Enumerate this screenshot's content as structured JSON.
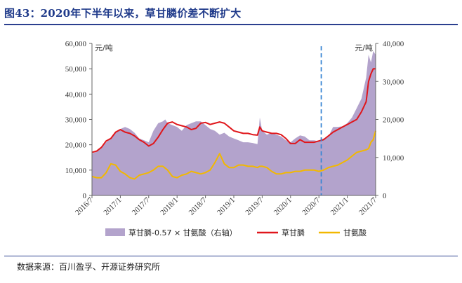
{
  "title": "图43：2020年下半年以来，草甘膦价差不断扩大",
  "source": "数据来源：百川盈孚、开源证券研究所",
  "chart_data": {
    "type": "line",
    "title": "图43：2020年下半年以来，草甘膦价差不断扩大",
    "left_unit": "元/吨",
    "right_unit": "元/吨",
    "ylim_left": [
      0,
      60000
    ],
    "ylim_right": [
      0,
      40000
    ],
    "yticks_left": [
      "0",
      "10,000",
      "20,000",
      "30,000",
      "40,000",
      "50,000",
      "60,000"
    ],
    "yticks_right": [
      "0",
      "10,000",
      "20,000",
      "30,000",
      "40,000"
    ],
    "xlim": [
      0,
      60
    ],
    "x_ticks": [
      "2016/7",
      "2017/1",
      "2017/7",
      "2018/1",
      "2018/7",
      "2019/1",
      "2019/7",
      "2020/1",
      "2020/7",
      "2021/1",
      "2021/7"
    ],
    "vline_x": 48.5,
    "series": [
      {
        "name": "草甘膦-0.57 × 甘氨酸（右轴）",
        "type": "area",
        "axis": "right",
        "color": "#b3a3cc",
        "x": [
          0,
          1,
          2,
          3,
          4,
          5,
          6,
          7,
          8,
          9,
          10,
          11,
          12,
          13,
          14,
          15,
          15.5,
          16,
          17,
          18,
          19,
          20,
          21,
          22,
          23,
          24,
          25,
          26,
          27,
          28,
          29,
          30,
          31,
          32,
          33,
          34,
          35,
          35.5,
          36,
          37,
          38,
          39,
          40,
          41,
          42,
          43,
          44,
          45,
          46,
          47,
          48,
          49,
          50,
          51,
          52,
          53,
          54,
          55,
          56,
          57,
          58,
          58.5,
          59,
          59.5,
          60
        ],
        "values": [
          11000,
          11500,
          12500,
          14000,
          15000,
          16500,
          17500,
          18000,
          17500,
          16500,
          15000,
          14500,
          14000,
          17000,
          19000,
          19500,
          20000,
          19000,
          18500,
          18000,
          17000,
          18500,
          19000,
          19500,
          19500,
          18500,
          17500,
          17000,
          16000,
          16500,
          15500,
          15000,
          14500,
          14000,
          14000,
          13800,
          13500,
          20500,
          17000,
          16000,
          16500,
          16000,
          15500,
          14500,
          14000,
          15000,
          15800,
          15500,
          14500,
          14500,
          14200,
          15000,
          15500,
          18000,
          18000,
          18200,
          19000,
          20500,
          23000,
          25500,
          31000,
          37000,
          35000,
          38000,
          37000
        ]
      },
      {
        "name": "草甘膦",
        "type": "line",
        "axis": "left",
        "color": "#e0161b",
        "x": [
          0,
          1,
          2,
          3,
          4,
          5,
          6,
          7,
          8,
          9,
          10,
          11,
          12,
          13,
          14,
          15,
          16,
          17,
          18,
          19,
          20,
          21,
          22,
          23,
          24,
          25,
          26,
          27,
          28,
          29,
          30,
          31,
          32,
          33,
          34,
          35,
          35.5,
          36,
          37,
          38,
          39,
          40,
          41,
          42,
          43,
          44,
          45,
          46,
          47,
          48,
          49,
          50,
          51,
          52,
          53,
          54,
          55,
          56,
          57,
          58,
          58.5,
          59,
          59.5,
          60
        ],
        "values": [
          17000,
          17500,
          19000,
          21500,
          22500,
          25000,
          26000,
          25000,
          24500,
          23500,
          22000,
          21000,
          19500,
          20500,
          23000,
          26000,
          28500,
          29000,
          28000,
          27500,
          27000,
          26000,
          26500,
          28500,
          28800,
          28000,
          28500,
          29000,
          28500,
          27000,
          25500,
          25000,
          24500,
          24500,
          24000,
          23800,
          27000,
          25500,
          25000,
          24500,
          24500,
          24000,
          22500,
          20500,
          20500,
          22000,
          21000,
          21000,
          21000,
          21500,
          22000,
          23500,
          25000,
          26000,
          27000,
          28000,
          29000,
          30000,
          33000,
          37000,
          45000,
          48000,
          50000,
          50000
        ]
      },
      {
        "name": "甘氨酸",
        "type": "line",
        "axis": "left",
        "color": "#f2b800",
        "x": [
          0,
          1,
          2,
          3,
          4,
          5,
          6,
          7,
          8,
          9,
          10,
          11,
          12,
          13,
          14,
          15,
          16,
          17,
          18,
          19,
          20,
          21,
          22,
          23,
          24,
          25,
          26,
          27,
          28,
          29,
          30,
          31,
          32,
          33,
          34,
          35,
          35.5,
          36,
          37,
          38,
          39,
          40,
          41,
          42,
          43,
          44,
          45,
          46,
          47,
          48,
          49,
          50,
          51,
          52,
          53,
          54,
          55,
          56,
          57,
          58,
          58.5,
          59,
          59.5,
          60
        ],
        "values": [
          7500,
          7000,
          7000,
          9000,
          12500,
          12000,
          9500,
          8500,
          7000,
          6500,
          8000,
          8500,
          9000,
          10000,
          11500,
          11500,
          10000,
          7500,
          7000,
          8000,
          8500,
          9500,
          9000,
          8500,
          9000,
          10000,
          13000,
          16500,
          12500,
          11000,
          11000,
          12000,
          12000,
          11500,
          11500,
          11000,
          11500,
          11500,
          11000,
          9500,
          8500,
          8500,
          9000,
          9000,
          9500,
          9500,
          10000,
          10000,
          10000,
          9500,
          10000,
          11000,
          11500,
          12000,
          13000,
          14000,
          15500,
          17000,
          17500,
          18000,
          18500,
          21000,
          22000,
          25500
        ]
      }
    ],
    "legend": [
      "草甘膦-0.57 × 甘氨酸（右轴）",
      "草甘膦",
      "甘氨酸"
    ]
  }
}
